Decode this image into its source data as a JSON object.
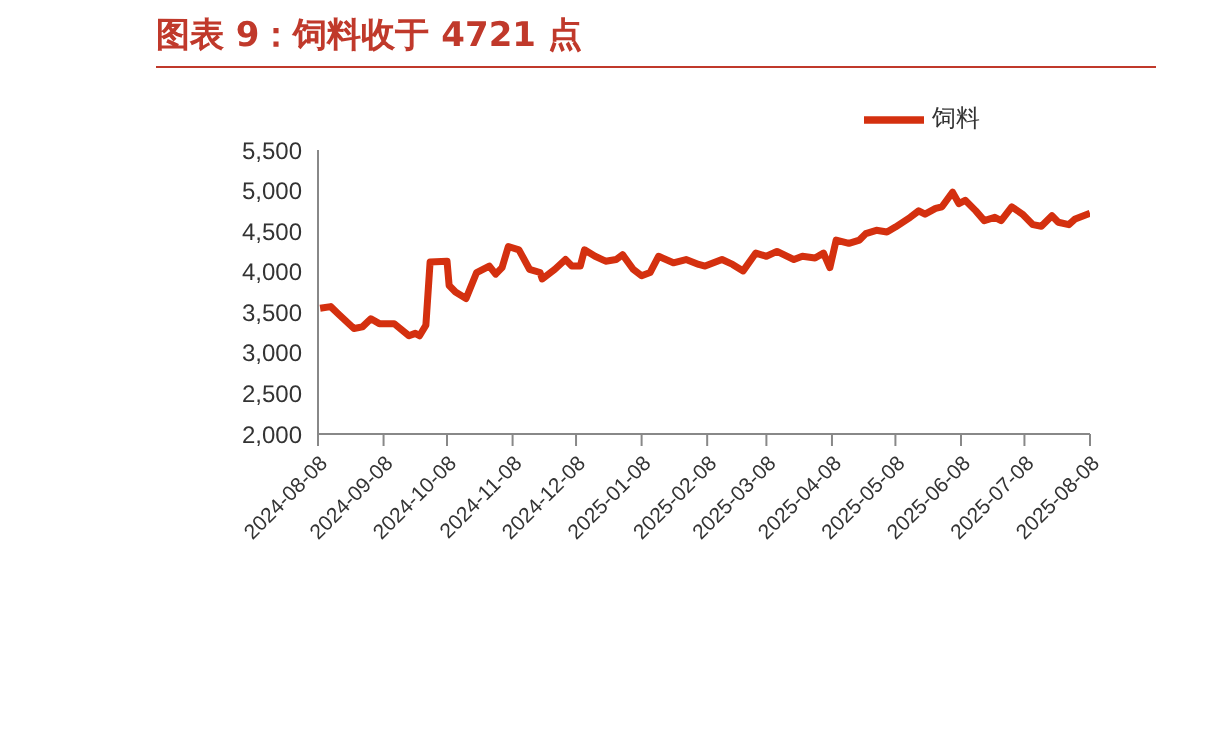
{
  "chart_data": {
    "type": "line",
    "title": "图表 9：饲料收于 4721 点",
    "x": [
      "2024-08-09",
      "2024-08-14",
      "2024-08-18",
      "2024-08-25",
      "2024-08-29",
      "2024-09-02",
      "2024-09-06",
      "2024-09-13",
      "2024-09-20",
      "2024-09-23",
      "2024-09-25",
      "2024-09-28",
      "2024-09-30",
      "2024-10-08",
      "2024-10-09",
      "2024-10-12",
      "2024-10-17",
      "2024-10-22",
      "2024-10-28",
      "2024-10-31",
      "2024-11-03",
      "2024-11-06",
      "2024-11-11",
      "2024-11-16",
      "2024-11-21",
      "2024-11-22",
      "2024-11-28",
      "2024-12-03",
      "2024-12-06",
      "2024-12-10",
      "2024-12-12",
      "2024-12-17",
      "2024-12-22",
      "2024-12-27",
      "2024-12-30",
      "2025-01-04",
      "2025-01-08",
      "2025-01-12",
      "2025-01-16",
      "2025-01-23",
      "2025-01-29",
      "2025-02-04",
      "2025-02-07",
      "2025-02-15",
      "2025-02-20",
      "2025-02-25",
      "2025-03-03",
      "2025-03-08",
      "2025-03-13",
      "2025-03-21",
      "2025-03-25",
      "2025-03-31",
      "2025-04-04",
      "2025-04-07",
      "2025-04-10",
      "2025-04-16",
      "2025-04-21",
      "2025-04-24",
      "2025-04-29",
      "2025-05-04",
      "2025-05-08",
      "2025-05-15",
      "2025-05-19",
      "2025-05-22",
      "2025-05-27",
      "2025-05-30",
      "2025-06-04",
      "2025-06-07",
      "2025-06-10",
      "2025-06-15",
      "2025-06-19",
      "2025-06-24",
      "2025-06-27",
      "2025-07-02",
      "2025-07-07",
      "2025-07-12",
      "2025-07-16",
      "2025-07-21",
      "2025-07-24",
      "2025-07-29",
      "2025-08-01",
      "2025-08-08"
    ],
    "series": [
      {
        "name": "饲料",
        "color": "#d4300f",
        "values": [
          3550,
          3570,
          3470,
          3300,
          3320,
          3420,
          3360,
          3360,
          3210,
          3240,
          3210,
          3340,
          4120,
          4130,
          3830,
          3750,
          3670,
          3990,
          4070,
          3970,
          4050,
          4310,
          4270,
          4030,
          3990,
          3910,
          4030,
          4150,
          4070,
          4070,
          4270,
          4190,
          4130,
          4150,
          4210,
          4030,
          3950,
          3990,
          4190,
          4110,
          4150,
          4090,
          4070,
          4150,
          4090,
          4010,
          4230,
          4190,
          4250,
          4150,
          4190,
          4170,
          4230,
          4050,
          4390,
          4350,
          4390,
          4470,
          4510,
          4490,
          4550,
          4670,
          4750,
          4710,
          4780,
          4800,
          4980,
          4840,
          4880,
          4750,
          4630,
          4670,
          4630,
          4800,
          4710,
          4580,
          4560,
          4690,
          4610,
          4580,
          4650,
          4721
        ]
      }
    ],
    "ylim": [
      2000,
      5500
    ],
    "yticks": [
      {
        "value": 2000,
        "label": "2,000"
      },
      {
        "value": 2500,
        "label": "2,500"
      },
      {
        "value": 3000,
        "label": "3,000"
      },
      {
        "value": 3500,
        "label": "3,500"
      },
      {
        "value": 4000,
        "label": "4,000"
      },
      {
        "value": 4500,
        "label": "4,500"
      },
      {
        "value": 5000,
        "label": "5,000"
      },
      {
        "value": 5500,
        "label": "5,500"
      }
    ],
    "xlim": [
      "2024-08-08",
      "2025-08-08"
    ],
    "xticks": [
      "2024-08-08",
      "2024-09-08",
      "2024-10-08",
      "2024-11-08",
      "2024-12-08",
      "2025-01-08",
      "2025-02-08",
      "2025-03-08",
      "2025-04-08",
      "2025-05-08",
      "2025-06-08",
      "2025-07-08",
      "2025-08-08"
    ],
    "grid": false,
    "legend": "top right",
    "marker": "none",
    "line_style": "solid"
  }
}
